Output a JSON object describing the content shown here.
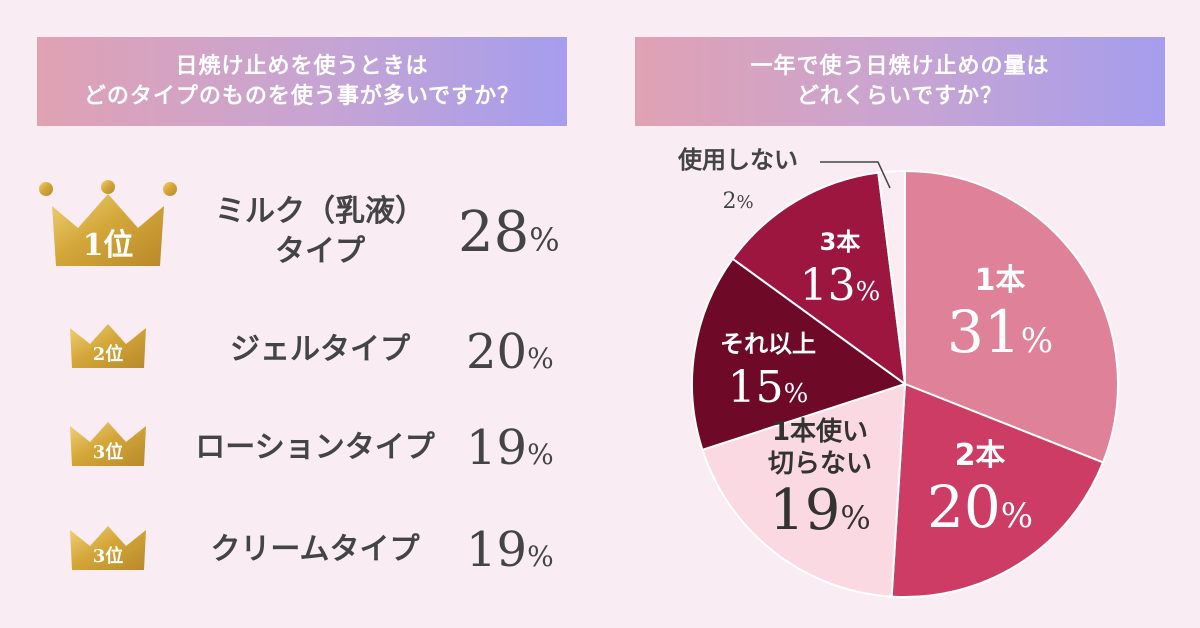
{
  "left_panel": {
    "title_line1": "日焼け止めを使うときは",
    "title_line2": "どのタイプのものを使う事が多いですか？",
    "rankings": [
      {
        "rank": "1位",
        "line1": "ミルク（乳液）",
        "line2": "タイプ",
        "percent": "28",
        "unit": "%"
      },
      {
        "rank": "2位",
        "line1": "ジェルタイプ",
        "line2": "",
        "percent": "20",
        "unit": "%"
      },
      {
        "rank": "3位",
        "line1": "ローションタイプ",
        "line2": "",
        "percent": "19",
        "unit": "%"
      },
      {
        "rank": "3位",
        "line1": "クリームタイプ",
        "line2": "",
        "percent": "19",
        "unit": "%"
      }
    ]
  },
  "right_panel": {
    "title_line1": "一年で使う日焼け止めの量は",
    "title_line2": "どれくらいですか？"
  },
  "chart_data": [
    {
      "type": "bar",
      "title": "日焼け止めを使うときはどのタイプのものを使う事が多いですか？",
      "categories": [
        "ミルク（乳液）タイプ",
        "ジェルタイプ",
        "ローションタイプ",
        "クリームタイプ"
      ],
      "values": [
        28,
        20,
        19,
        19
      ],
      "unit": "%"
    },
    {
      "type": "pie",
      "title": "一年で使う日焼け止めの量はどれくらいですか？",
      "slices": [
        {
          "label": "1本",
          "value": 31,
          "color": "#df8299"
        },
        {
          "label": "2本",
          "value": 20,
          "color": "#cd3c64"
        },
        {
          "label": "1本使い切らない",
          "label_lines": [
            "1本使い",
            "切らない"
          ],
          "value": 19,
          "color": "#fbd9e3"
        },
        {
          "label": "それ以上",
          "value": 15,
          "color": "#6e0a28"
        },
        {
          "label": "3本",
          "value": 13,
          "color": "#9c1640"
        },
        {
          "label": "使用しない",
          "value": 2,
          "color": "#f9ecf2"
        }
      ],
      "unit": "%"
    }
  ]
}
